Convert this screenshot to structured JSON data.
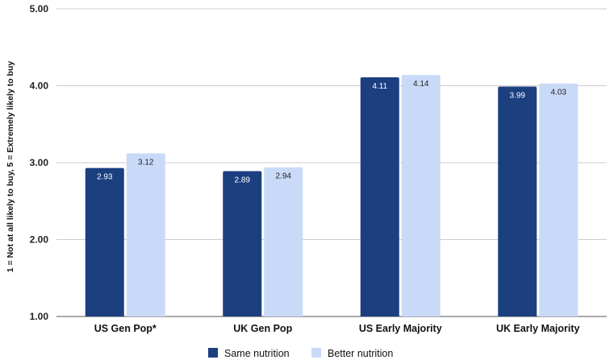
{
  "chart_data": {
    "type": "bar",
    "categories": [
      "US Gen Pop*",
      "UK Gen Pop",
      "US Early Majority",
      "UK Early Majority"
    ],
    "series": [
      {
        "name": "Same nutrition",
        "values": [
          2.93,
          2.89,
          4.11,
          3.99
        ],
        "color": "#1c3f80",
        "label_color": "#ffffff"
      },
      {
        "name": "Better nutrition",
        "values": [
          3.12,
          2.94,
          4.14,
          4.03
        ],
        "color": "#c9daf8",
        "label_color": "#222222"
      }
    ],
    "value_labels": [
      [
        "2.93",
        "2.89",
        "4.11",
        "3.99"
      ],
      [
        "3.12",
        "2.94",
        "4.14",
        "4.03"
      ]
    ],
    "ylabel": "1 = Not at all likely to buy, 5 = Extremely likely to buy",
    "ylim": [
      1,
      5
    ],
    "yticks": [
      1,
      2,
      3,
      4,
      5
    ],
    "ytick_labels": [
      "1.00",
      "2.00",
      "3.00",
      "4.00",
      "5.00"
    ],
    "grid": true,
    "legend_position": "bottom"
  }
}
